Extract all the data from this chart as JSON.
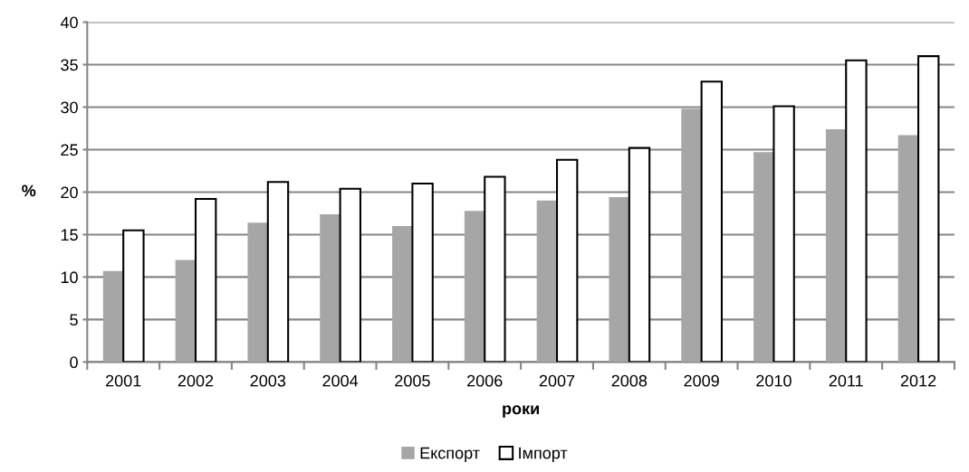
{
  "chart_data": {
    "type": "bar",
    "xlabel": "роки",
    "ylabel": "%",
    "categories": [
      "2001",
      "2002",
      "2003",
      "2004",
      "2005",
      "2006",
      "2007",
      "2008",
      "2009",
      "2010",
      "2011",
      "2012"
    ],
    "series": [
      {
        "name": "Експорт",
        "color": "#a6a6a6",
        "values": [
          10.7,
          12.0,
          16.4,
          17.4,
          16.0,
          17.8,
          19.0,
          19.4,
          29.8,
          24.7,
          27.4,
          26.7
        ]
      },
      {
        "name": "Імпорт",
        "color": "#ffffff",
        "values": [
          15.5,
          19.2,
          21.2,
          20.4,
          21.0,
          21.8,
          23.8,
          25.2,
          33.0,
          30.1,
          35.5,
          36.0
        ]
      }
    ],
    "ylim": [
      0,
      40
    ],
    "yticks": [
      0,
      5,
      10,
      15,
      20,
      25,
      30,
      35,
      40
    ],
    "grid": "y",
    "legend": "bottom"
  }
}
